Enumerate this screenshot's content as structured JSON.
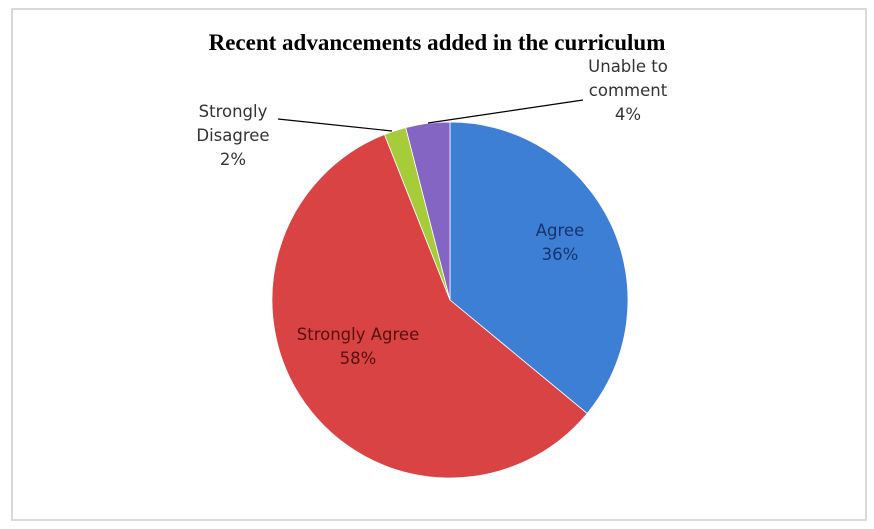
{
  "chart_data": {
    "type": "pie",
    "title": "Recent advancements added in the curriculum",
    "slices": [
      {
        "label_lines": [
          "Agree",
          "36%"
        ],
        "category": "Agree",
        "value": 36,
        "color": "#3e7fd6"
      },
      {
        "label_lines": [
          "Strongly Agree",
          "58%"
        ],
        "category": "Strongly Agree",
        "value": 58,
        "color": "#d94343"
      },
      {
        "label_lines": [
          "Strongly",
          "Disagree",
          "2%"
        ],
        "category": "Strongly Disagree",
        "value": 2,
        "color": "#a6cc3a"
      },
      {
        "label_lines": [
          "Unable to",
          "comment",
          "4%"
        ],
        "category": "Unable to comment",
        "value": 4,
        "color": "#8565c4"
      }
    ]
  }
}
